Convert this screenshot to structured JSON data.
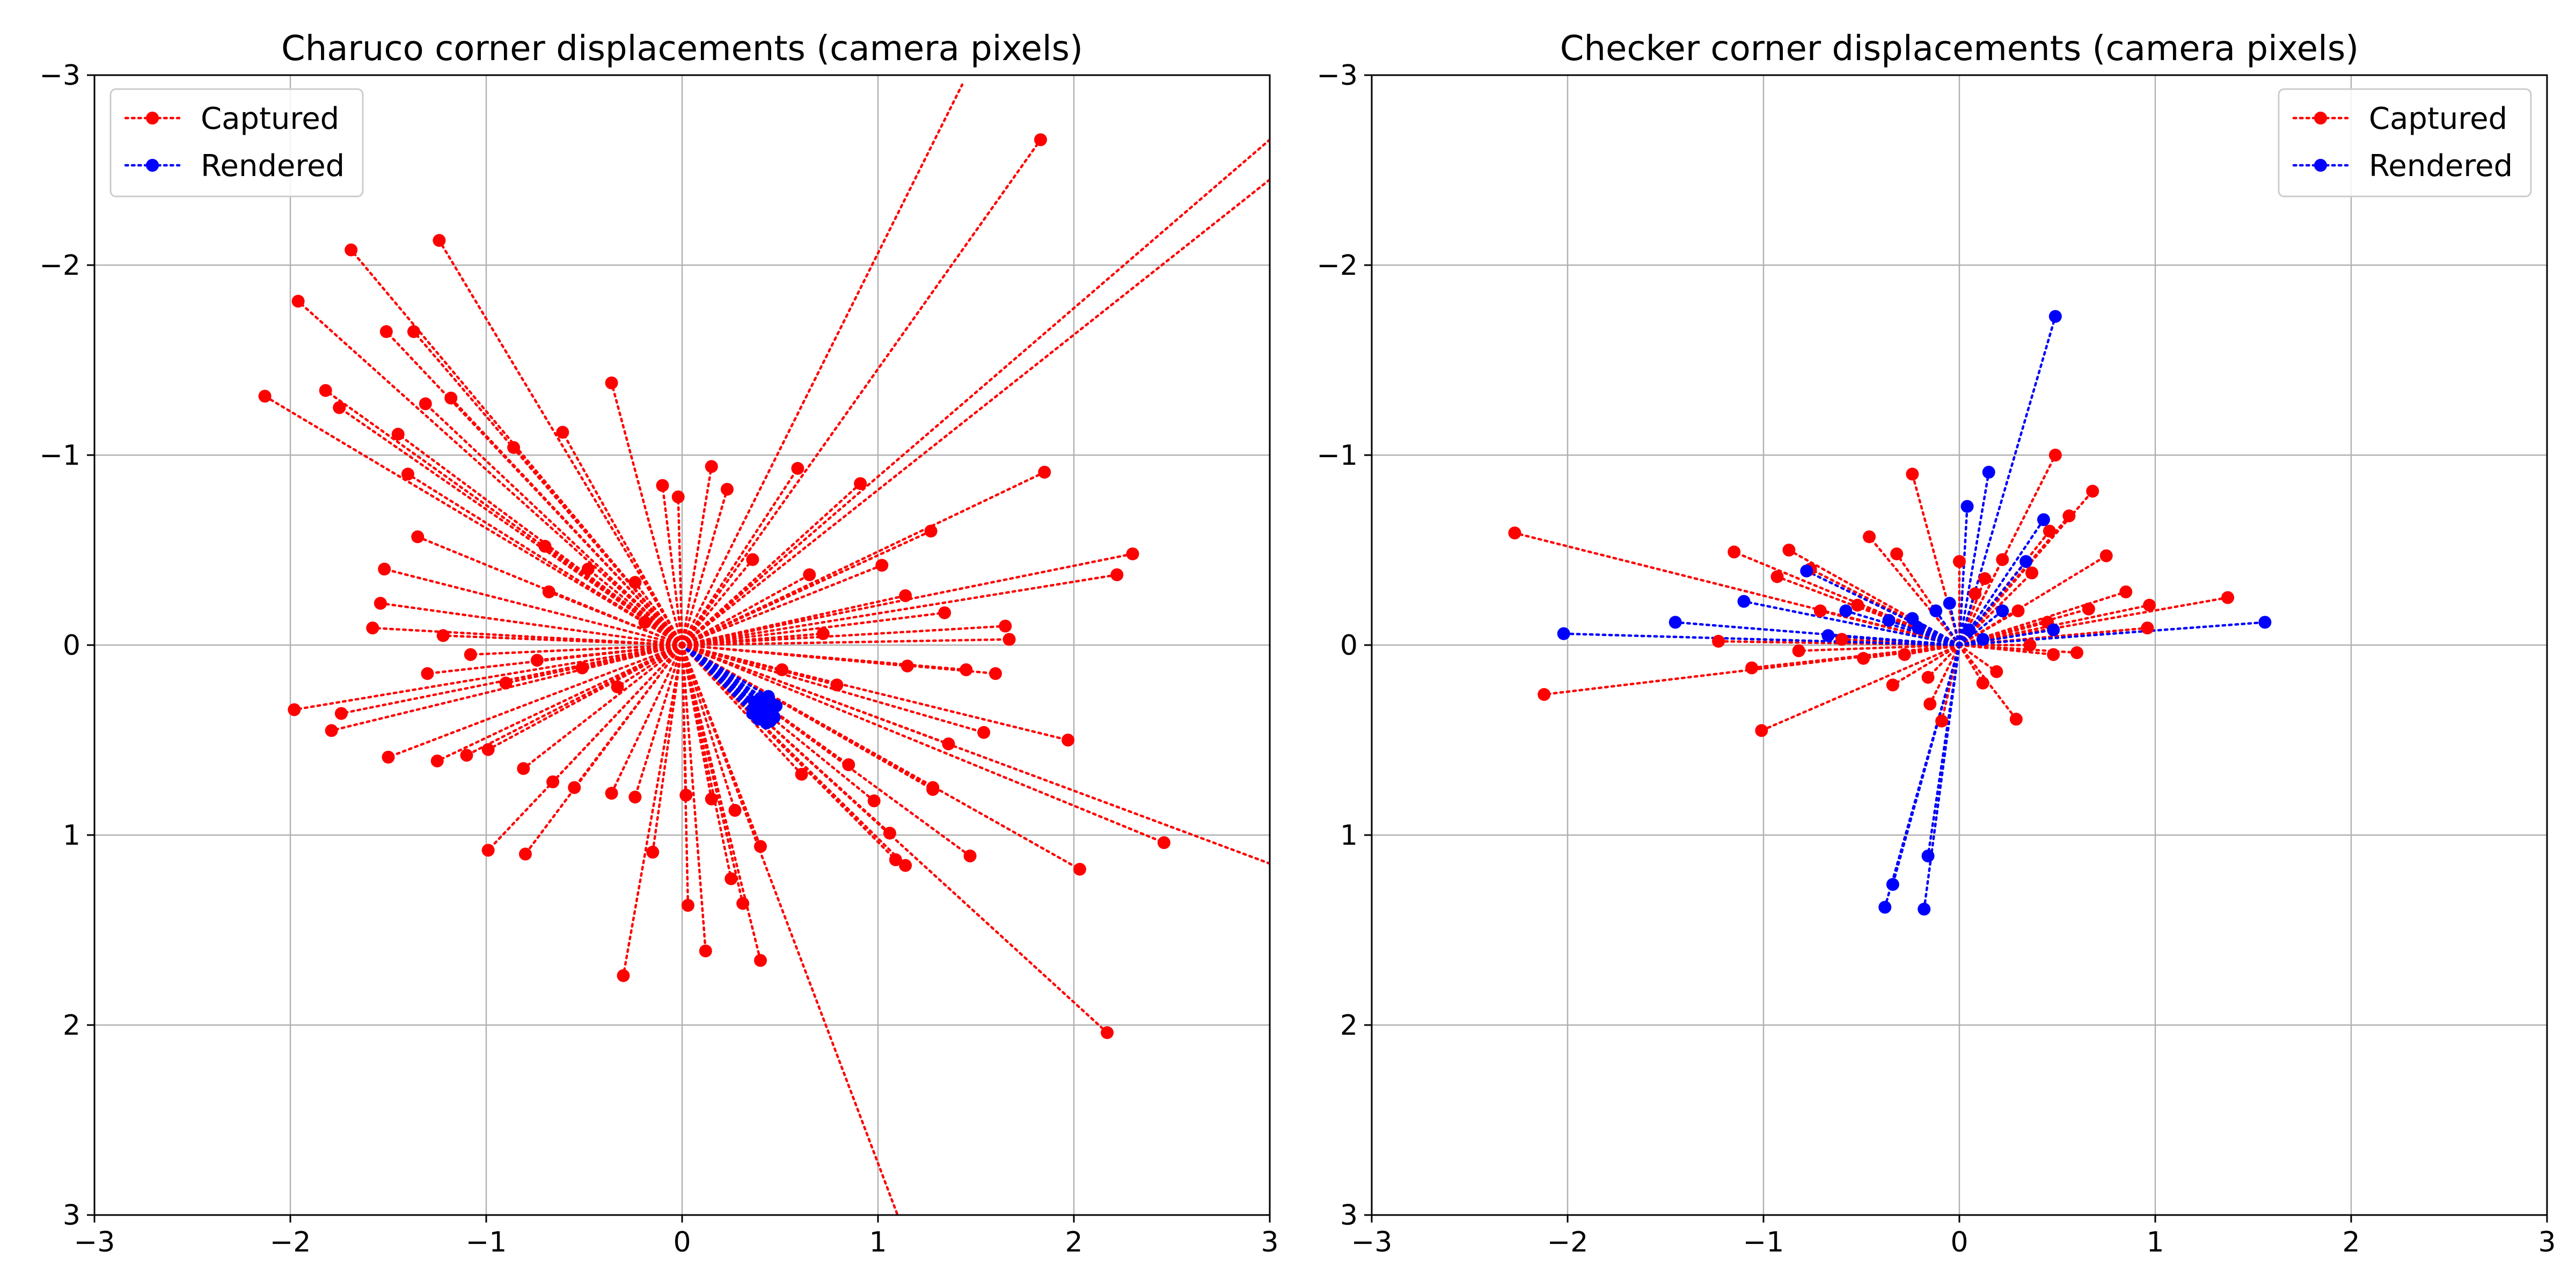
{
  "chart_data": [
    {
      "type": "scatter",
      "title": "Charuco corner displacements (camera pixels)",
      "xlabel": "",
      "ylabel": "",
      "xlim": [
        -3,
        3
      ],
      "ylim": [
        -3,
        3
      ],
      "y_inverted": true,
      "grid": true,
      "xticks": [
        "−3",
        "−2",
        "−1",
        "0",
        "1",
        "2",
        "3"
      ],
      "yticks": [
        "−3",
        "−2",
        "−1",
        "0",
        "1",
        "2",
        "3"
      ],
      "legend": {
        "placement": "top-left",
        "entries": [
          "Captured",
          "Rendered"
        ]
      },
      "style": "each point is joined to the origin (0,0) by a dotted line",
      "series": [
        {
          "name": "Captured",
          "color": "#ff0000",
          "points": [
            [
              1.83,
              -2.66
            ],
            [
              -1.24,
              -2.13
            ],
            [
              -1.69,
              -2.08
            ],
            [
              -1.96,
              -1.81
            ],
            [
              -2.13,
              -1.31
            ],
            [
              -1.82,
              -1.34
            ],
            [
              -1.51,
              -1.65
            ],
            [
              -1.37,
              -1.65
            ],
            [
              -1.75,
              -1.25
            ],
            [
              -0.36,
              -1.38
            ],
            [
              -1.18,
              -1.3
            ],
            [
              -1.31,
              -1.27
            ],
            [
              -1.45,
              -1.11
            ],
            [
              -0.86,
              -1.04
            ],
            [
              -0.61,
              -1.12
            ],
            [
              -1.4,
              -0.9
            ],
            [
              1.85,
              -0.91
            ],
            [
              0.15,
              -0.94
            ],
            [
              0.59,
              -0.93
            ],
            [
              0.91,
              -0.85
            ],
            [
              -0.1,
              -0.84
            ],
            [
              -0.02,
              -0.78
            ],
            [
              0.23,
              -0.82
            ],
            [
              1.27,
              -0.6
            ],
            [
              2.3,
              -0.48
            ],
            [
              2.22,
              -0.37
            ],
            [
              -1.35,
              -0.57
            ],
            [
              -1.52,
              -0.4
            ],
            [
              -1.54,
              -0.22
            ],
            [
              -1.58,
              -0.09
            ],
            [
              -0.7,
              -0.52
            ],
            [
              -0.48,
              -0.4
            ],
            [
              -0.24,
              -0.33
            ],
            [
              0.36,
              -0.45
            ],
            [
              0.65,
              -0.37
            ],
            [
              1.02,
              -0.42
            ],
            [
              1.14,
              -0.26
            ],
            [
              1.34,
              -0.17
            ],
            [
              1.65,
              -0.1
            ],
            [
              1.67,
              -0.03
            ],
            [
              -1.22,
              -0.05
            ],
            [
              -1.08,
              0.05
            ],
            [
              -1.3,
              0.15
            ],
            [
              -0.9,
              0.2
            ],
            [
              -0.74,
              0.08
            ],
            [
              -0.51,
              0.12
            ],
            [
              -0.33,
              0.22
            ],
            [
              0.51,
              0.13
            ],
            [
              0.79,
              0.21
            ],
            [
              1.15,
              0.11
            ],
            [
              1.45,
              0.13
            ],
            [
              1.6,
              0.15
            ],
            [
              -1.98,
              0.34
            ],
            [
              -1.79,
              0.45
            ],
            [
              -1.74,
              0.36
            ],
            [
              -1.5,
              0.59
            ],
            [
              -1.25,
              0.61
            ],
            [
              -1.1,
              0.58
            ],
            [
              -0.99,
              0.55
            ],
            [
              -0.81,
              0.65
            ],
            [
              -0.66,
              0.72
            ],
            [
              -0.55,
              0.75
            ],
            [
              -0.36,
              0.78
            ],
            [
              -0.24,
              0.8
            ],
            [
              0.02,
              0.79
            ],
            [
              0.15,
              0.81
            ],
            [
              0.27,
              0.87
            ],
            [
              -0.99,
              1.08
            ],
            [
              -0.8,
              1.1
            ],
            [
              -0.3,
              1.74
            ],
            [
              -0.15,
              1.09
            ],
            [
              0.03,
              1.37
            ],
            [
              0.12,
              1.61
            ],
            [
              0.25,
              1.23
            ],
            [
              0.31,
              1.36
            ],
            [
              0.4,
              1.66
            ],
            [
              0.4,
              1.06
            ],
            [
              0.61,
              0.68
            ],
            [
              0.85,
              0.63
            ],
            [
              0.98,
              0.82
            ],
            [
              1.06,
              0.99
            ],
            [
              1.09,
              1.13
            ],
            [
              1.14,
              1.16
            ],
            [
              1.28,
              0.76
            ],
            [
              1.47,
              1.11
            ],
            [
              1.54,
              0.46
            ],
            [
              1.97,
              0.5
            ],
            [
              2.03,
              1.18
            ],
            [
              2.46,
              1.04
            ],
            [
              2.17,
              2.04
            ],
            [
              1.36,
              0.52
            ],
            [
              1.28,
              0.75
            ],
            [
              -0.68,
              -0.28
            ],
            [
              0.72,
              -0.06
            ],
            [
              -0.19,
              -0.12
            ]
          ]
        },
        {
          "name": "Rendered",
          "color": "#0000ff",
          "points": [
            [
              0.38,
              0.33
            ],
            [
              0.42,
              0.38
            ],
            [
              0.46,
              0.35
            ],
            [
              0.4,
              0.28
            ],
            [
              0.45,
              0.3
            ],
            [
              0.36,
              0.36
            ],
            [
              0.43,
              0.41
            ],
            [
              0.48,
              0.32
            ],
            [
              0.39,
              0.39
            ],
            [
              0.44,
              0.27
            ],
            [
              0.41,
              0.34
            ],
            [
              0.47,
              0.38
            ],
            [
              0.37,
              0.3
            ],
            [
              0.42,
              0.31
            ],
            [
              0.45,
              0.4
            ]
          ]
        }
      ],
      "line_extents": [
        {
          "series": "Captured",
          "to": [
            1.43,
            -2.95
          ]
        },
        {
          "series": "Captured",
          "to": [
            3.0,
            -2.66
          ]
        },
        {
          "series": "Captured",
          "to": [
            3.0,
            -2.45
          ]
        },
        {
          "series": "Captured",
          "to": [
            3.0,
            1.15
          ]
        },
        {
          "series": "Captured",
          "to": [
            1.1,
            3.0
          ]
        }
      ]
    },
    {
      "type": "scatter",
      "title": "Checker corner displacements (camera pixels)",
      "xlabel": "",
      "ylabel": "",
      "xlim": [
        -3,
        3
      ],
      "ylim": [
        -3,
        3
      ],
      "y_inverted": true,
      "grid": true,
      "xticks": [
        "−3",
        "−2",
        "−1",
        "0",
        "1",
        "2",
        "3"
      ],
      "yticks": [
        "−3",
        "−2",
        "−1",
        "0",
        "1",
        "2",
        "3"
      ],
      "legend": {
        "placement": "top-right",
        "entries": [
          "Captured",
          "Rendered"
        ]
      },
      "style": "each point is joined to the origin (0,0) by a dotted line",
      "series": [
        {
          "name": "Captured",
          "color": "#ff0000",
          "points": [
            [
              -2.27,
              -0.59
            ],
            [
              -2.12,
              0.26
            ],
            [
              -1.01,
              0.45
            ],
            [
              -1.15,
              -0.49
            ],
            [
              -0.87,
              -0.5
            ],
            [
              -0.93,
              -0.36
            ],
            [
              -0.76,
              -0.4
            ],
            [
              -0.46,
              -0.57
            ],
            [
              -0.24,
              -0.9
            ],
            [
              -0.32,
              -0.48
            ],
            [
              0.0,
              -0.44
            ],
            [
              0.13,
              -0.35
            ],
            [
              0.37,
              -0.38
            ],
            [
              0.46,
              -0.6
            ],
            [
              0.49,
              -1.0
            ],
            [
              0.56,
              -0.68
            ],
            [
              0.68,
              -0.81
            ],
            [
              0.75,
              -0.47
            ],
            [
              0.85,
              -0.28
            ],
            [
              0.97,
              -0.21
            ],
            [
              1.37,
              -0.25
            ],
            [
              0.96,
              -0.09
            ],
            [
              0.6,
              0.04
            ],
            [
              0.3,
              -0.18
            ],
            [
              0.19,
              0.14
            ],
            [
              -0.16,
              0.17
            ],
            [
              -0.15,
              0.31
            ],
            [
              -0.09,
              0.4
            ],
            [
              0.12,
              0.2
            ],
            [
              0.29,
              0.39
            ],
            [
              -0.49,
              0.07
            ],
            [
              -0.6,
              -0.03
            ],
            [
              -0.82,
              0.03
            ],
            [
              -1.23,
              -0.02
            ],
            [
              -1.06,
              0.12
            ],
            [
              -0.34,
              0.21
            ],
            [
              0.48,
              0.05
            ],
            [
              0.22,
              -0.45
            ],
            [
              -0.52,
              -0.21
            ],
            [
              0.66,
              -0.19
            ],
            [
              -0.71,
              -0.18
            ],
            [
              0.08,
              -0.27
            ],
            [
              0.45,
              -0.12
            ],
            [
              -0.28,
              0.05
            ],
            [
              0.36,
              0.0
            ]
          ]
        },
        {
          "name": "Rendered",
          "color": "#0000ff",
          "points": [
            [
              0.49,
              -1.73
            ],
            [
              0.15,
              -0.91
            ],
            [
              0.04,
              -0.73
            ],
            [
              -1.45,
              -0.12
            ],
            [
              -2.02,
              -0.06
            ],
            [
              1.56,
              -0.12
            ],
            [
              -0.38,
              1.38
            ],
            [
              -0.34,
              1.26
            ],
            [
              -0.18,
              1.39
            ],
            [
              -0.16,
              1.11
            ],
            [
              0.34,
              -0.44
            ],
            [
              0.43,
              -0.66
            ],
            [
              -0.05,
              -0.22
            ],
            [
              -0.24,
              -0.14
            ],
            [
              -0.12,
              -0.18
            ],
            [
              -0.67,
              -0.05
            ],
            [
              -0.78,
              -0.39
            ],
            [
              -1.1,
              -0.23
            ],
            [
              0.48,
              -0.08
            ],
            [
              0.12,
              -0.03
            ],
            [
              -0.36,
              -0.13
            ],
            [
              -0.58,
              -0.18
            ],
            [
              0.22,
              -0.18
            ],
            [
              -0.21,
              -0.09
            ],
            [
              0.05,
              -0.08
            ]
          ]
        }
      ],
      "line_extents": []
    }
  ]
}
